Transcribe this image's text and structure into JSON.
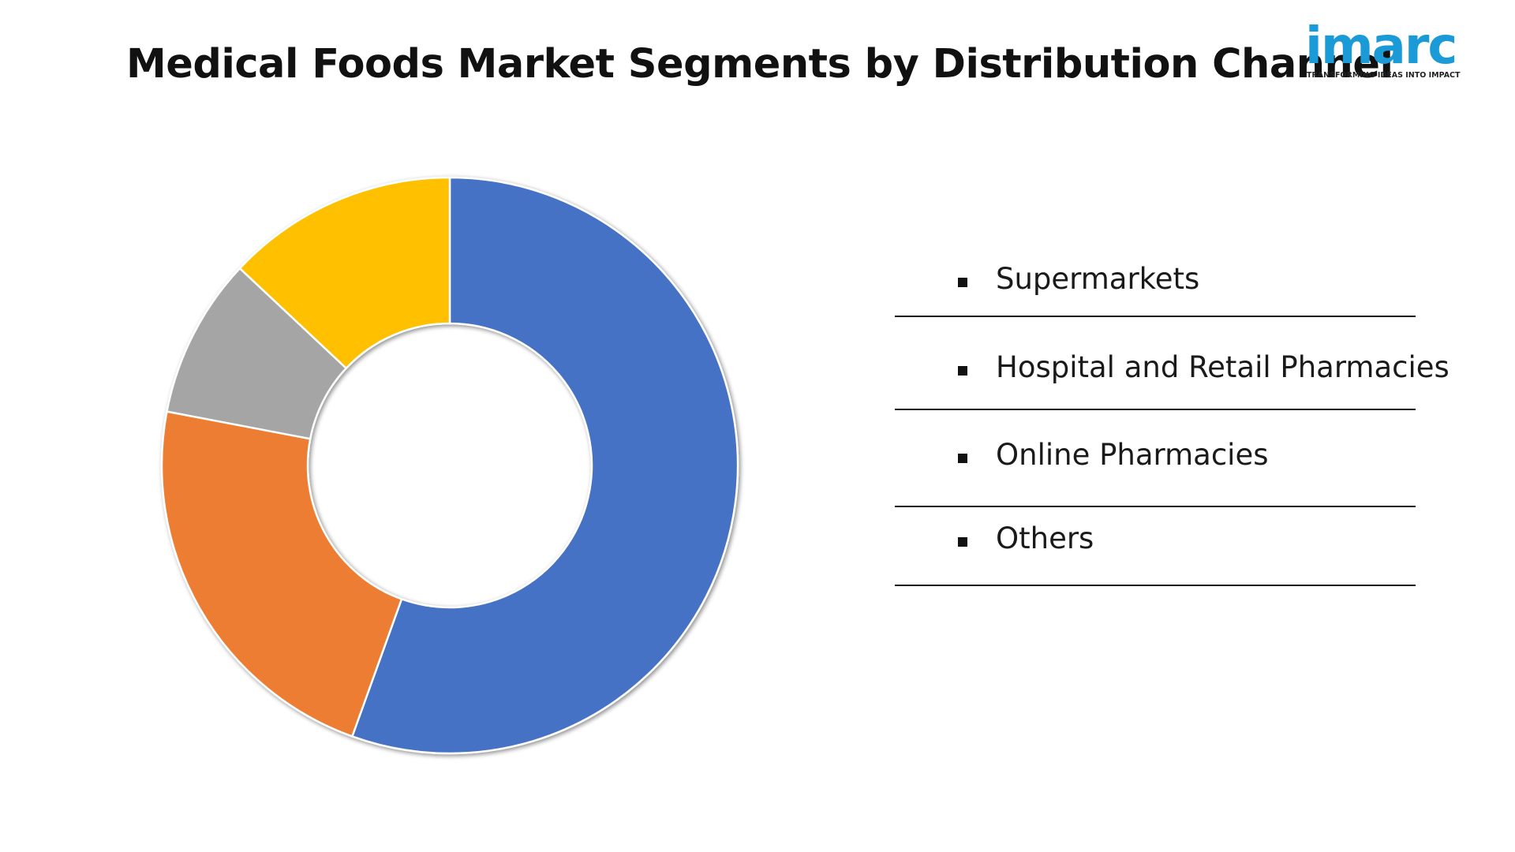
{
  "title": "Medical Foods Market Segments by Distribution Channel",
  "logo": {
    "wordmark": "imarc",
    "tagline": "TRANSFORMING IDEAS INTO IMPACT",
    "color": "#1a9bd7"
  },
  "chart_data": {
    "type": "pie",
    "donut": true,
    "title": "Medical Foods Market Segments by Distribution Channel",
    "categories": [
      "Supermarkets",
      "Hospital and Retail Pharmacies",
      "Online Pharmacies",
      "Others"
    ],
    "values": [
      55.5,
      22.5,
      9.0,
      13.0
    ],
    "colors": [
      "#4472c4",
      "#ed7d31",
      "#a5a5a5",
      "#ffc000"
    ],
    "start_angle_deg": 0,
    "direction": "clockwise",
    "legend_placement": "right"
  }
}
